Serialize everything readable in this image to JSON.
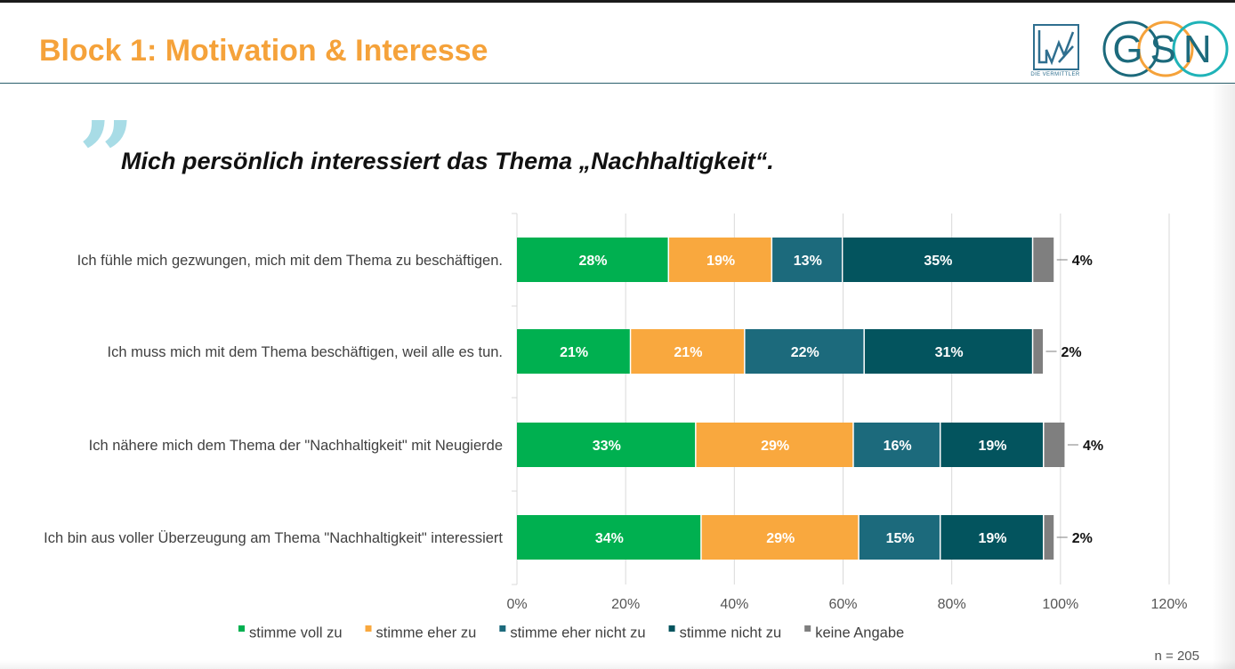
{
  "header": {
    "title": "Block 1: Motivation & Interesse",
    "logo_bvk_caption": "DIE VERMITTLER",
    "logo_gsn_text": "GSN"
  },
  "question": {
    "quote_mark": "”",
    "text": "Mich persönlich interessiert das Thema „Nachhaltigkeit“."
  },
  "colors": {
    "title": "#f5a23a",
    "stimme_voll_zu": "#00b050",
    "stimme_eher_zu": "#f9a83e",
    "stimme_eher_nicht_zu": "#1c6a7c",
    "stimme_nicht_zu": "#03545e",
    "keine_angabe": "#7f7f7f",
    "quote_mark": "#a8dce6"
  },
  "chart_data": {
    "type": "bar",
    "orientation": "horizontal",
    "stacked": true,
    "categories": [
      "Ich fühle mich gezwungen, mich mit dem Thema zu beschäftigen.",
      "Ich muss mich mit dem Thema beschäftigen, weil alle es tun.",
      "Ich nähere mich dem Thema der \"Nachhaltigkeit\" mit Neugierde",
      "Ich bin aus voller Überzeugung am Thema \"Nachhaltigkeit\" interessiert"
    ],
    "series": [
      {
        "name": "stimme voll zu",
        "values": [
          28,
          21,
          33,
          34
        ],
        "color": "#00b050"
      },
      {
        "name": "stimme eher zu",
        "values": [
          19,
          21,
          29,
          29
        ],
        "color": "#f9a83e"
      },
      {
        "name": "stimme eher nicht zu",
        "values": [
          13,
          22,
          16,
          15
        ],
        "color": "#1c6a7c"
      },
      {
        "name": "stimme nicht zu",
        "values": [
          35,
          31,
          19,
          19
        ],
        "color": "#03545e"
      },
      {
        "name": "keine Angabe",
        "values": [
          4,
          2,
          4,
          2
        ],
        "color": "#7f7f7f"
      }
    ],
    "value_suffix": "%",
    "xlim": [
      0,
      120
    ],
    "xticks": [
      "0%",
      "20%",
      "40%",
      "60%",
      "80%",
      "100%",
      "120%"
    ],
    "grid": true,
    "legend_position": "bottom",
    "note": "n = 205"
  }
}
